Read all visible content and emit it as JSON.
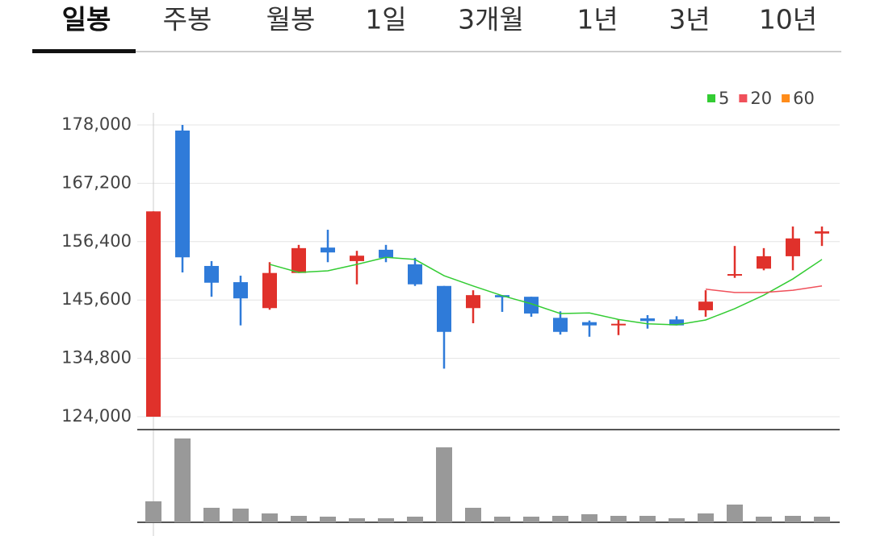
{
  "tabs": {
    "items": [
      "일봉",
      "주봉",
      "월봉",
      "1일",
      "3개월",
      "1년",
      "3년",
      "10년"
    ],
    "selected": 0
  },
  "chart_data": [
    {
      "type": "candlestick",
      "up_color": "#e0312b",
      "down_color": "#2f7bd9",
      "open": [
        124000,
        176960,
        151900,
        148900,
        144100,
        150600,
        155300,
        152800,
        154900,
        152200,
        148200,
        144100,
        146500,
        146200,
        142300,
        141500,
        141000,
        142200,
        142000,
        143700,
        150100,
        151400,
        153700,
        157900
      ],
      "high": [
        162000,
        178000,
        152800,
        150100,
        152600,
        155800,
        158600,
        154700,
        155800,
        153400,
        148200,
        147400,
        146500,
        146200,
        143500,
        141800,
        142000,
        142800,
        142600,
        147400,
        155600,
        155200,
        159200,
        159200
      ],
      "low": [
        124000,
        150700,
        146200,
        140900,
        143800,
        150600,
        152600,
        148500,
        152600,
        148200,
        132900,
        141300,
        143400,
        142500,
        139200,
        138800,
        139100,
        140300,
        140900,
        142500,
        149700,
        151100,
        151100,
        155600
      ],
      "close": [
        162000,
        153500,
        148800,
        145900,
        150600,
        155200,
        154400,
        153800,
        153400,
        148500,
        139700,
        146500,
        146100,
        143100,
        139700,
        140900,
        141200,
        141700,
        140900,
        145300,
        150400,
        153700,
        157000,
        158300
      ],
      "series": [
        {
          "name": "5",
          "color": "#33cc33",
          "values": [
            null,
            null,
            null,
            null,
            152200,
            150700,
            151000,
            152200,
            153500,
            153100,
            150100,
            148200,
            146400,
            144900,
            143100,
            143200,
            142000,
            141200,
            141000,
            141900,
            144000,
            146500,
            149500,
            153100
          ]
        },
        {
          "name": "20",
          "color": "#f0505a",
          "values": [
            null,
            null,
            null,
            null,
            null,
            null,
            null,
            null,
            null,
            null,
            null,
            null,
            null,
            null,
            null,
            null,
            null,
            null,
            null,
            147600,
            147000,
            147000,
            147400,
            148200
          ]
        },
        {
          "name": "60",
          "color": "#ff8c1a",
          "values": [
            null,
            null,
            null,
            null,
            null,
            null,
            null,
            null,
            null,
            null,
            null,
            null,
            null,
            null,
            null,
            null,
            null,
            null,
            null,
            null,
            null,
            null,
            null,
            null
          ]
        }
      ],
      "ylim": [
        124000,
        178000
      ],
      "yticks": [
        {
          "value": 124000,
          "label": "124,000"
        },
        {
          "value": 134800,
          "label": "134,800"
        },
        {
          "value": 145600,
          "label": "145,600"
        },
        {
          "value": 156400,
          "label": "156,400"
        },
        {
          "value": 167200,
          "label": "167,200"
        },
        {
          "value": 178000,
          "label": "178,000"
        }
      ],
      "grid": true
    },
    {
      "type": "bar",
      "color": "#999999",
      "values": [
        26,
        104,
        18,
        17,
        11,
        8,
        7,
        5,
        5,
        7,
        93,
        18,
        7,
        7,
        8,
        10,
        8,
        8,
        5,
        11,
        22,
        7,
        8,
        7
      ],
      "ylim": [
        0,
        110
      ]
    }
  ]
}
